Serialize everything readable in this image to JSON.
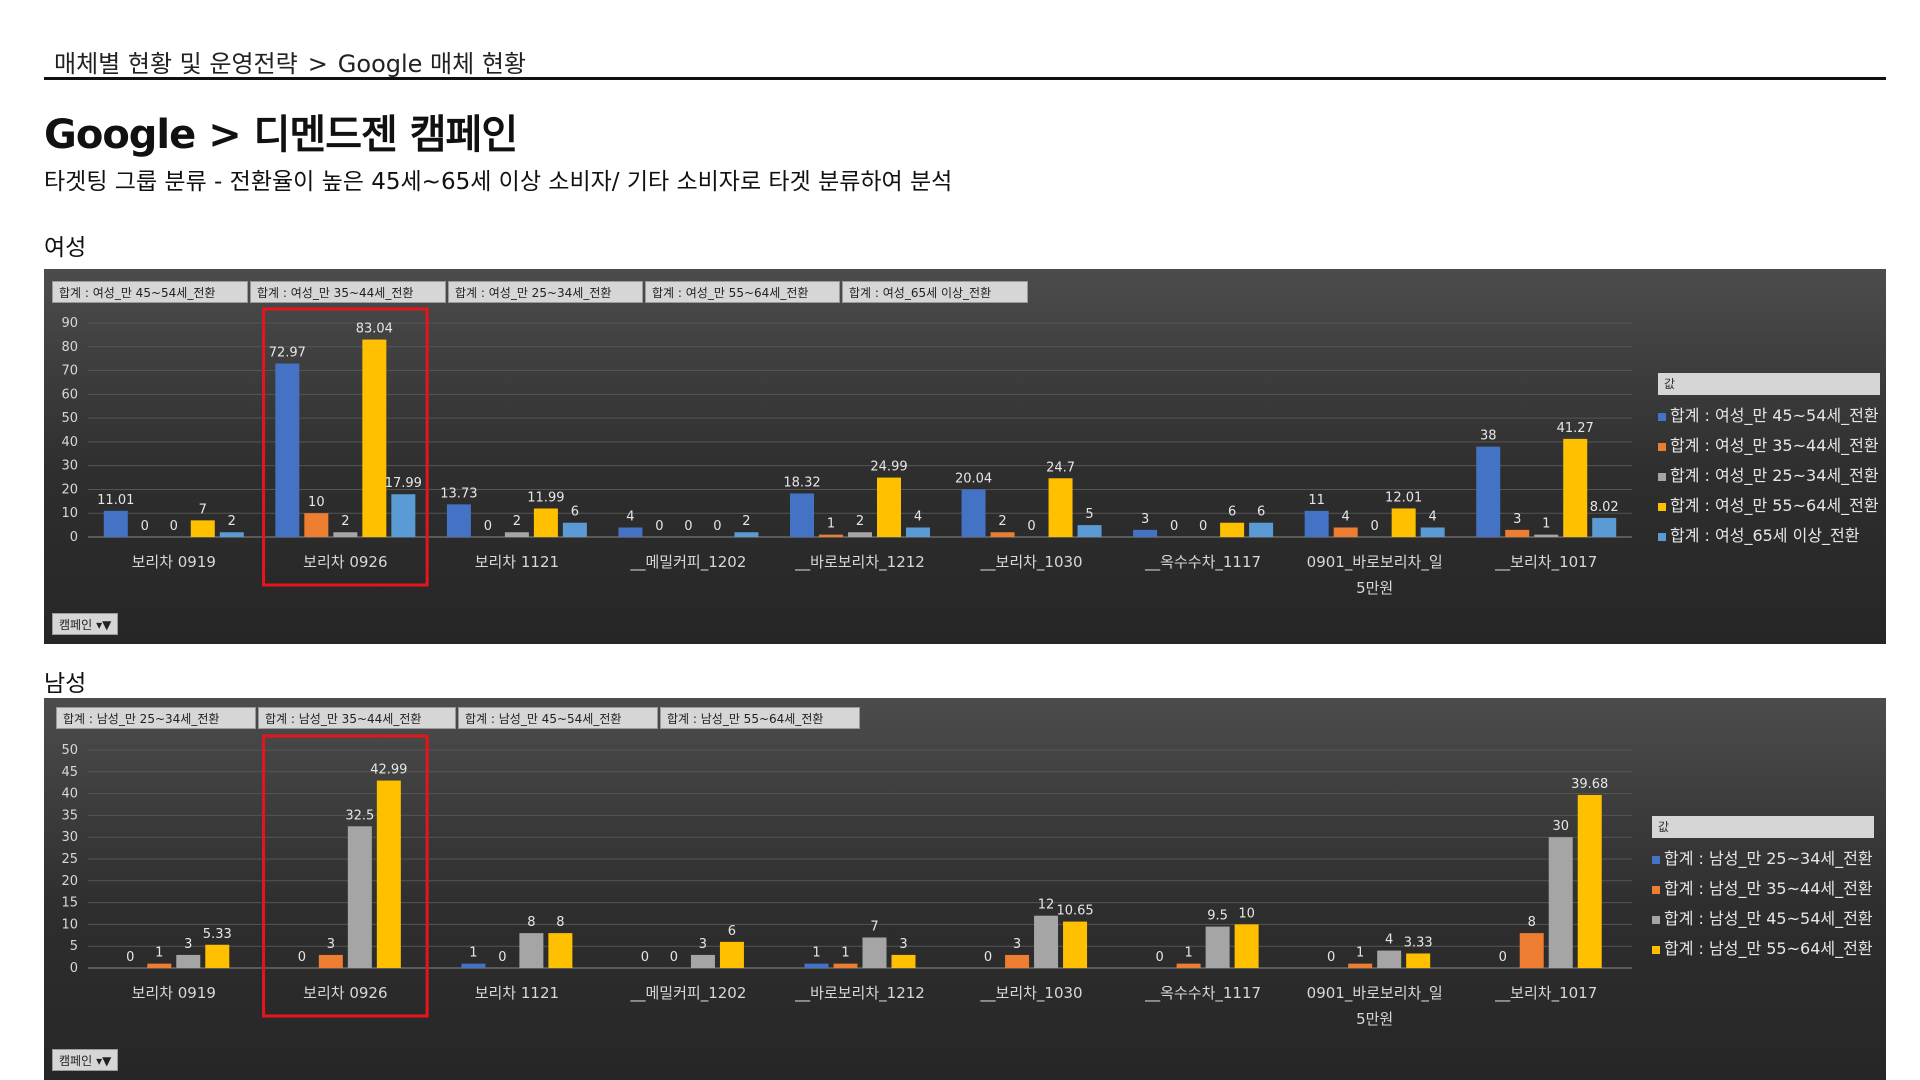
{
  "breadcrumb": {
    "section": "매체별 현황 및 운영전략",
    "separator": ">",
    "page": "Google 매체 현황"
  },
  "title": "Google > 디멘드젠 캠페인",
  "subtitle": "타겟팅 그룹 분류 - 전환율이 높은 45세~65세 이상 소비자/ 기타 소비자로 타겟 분류하여 분석",
  "sections": {
    "female": "여성",
    "male": "남성"
  },
  "legend_header": "값",
  "filter_label": "캠페인",
  "chart_data": [
    {
      "type": "bar",
      "section": "여성",
      "categories": [
        "보리차 0919",
        "보리차 0926",
        "보리차 1121",
        "__메밀커피_1202",
        "__바로보리차_1212",
        "__보리차_1030",
        "__옥수수차_1117",
        "0901_바로보리차_일\n5만원",
        "__보리차_1017"
      ],
      "category_lines": [
        [
          "보리차 0919"
        ],
        [
          "보리차 0926"
        ],
        [
          "보리차 1121"
        ],
        [
          "__메밀커피_1202"
        ],
        [
          "__바로보리차_1212"
        ],
        [
          "__보리차_1030"
        ],
        [
          "__옥수수차_1117"
        ],
        [
          "0901_바로보리차_일",
          "5만원"
        ],
        [
          "__보리차_1017"
        ]
      ],
      "ylim": [
        0,
        90
      ],
      "yticks": [
        0,
        10,
        20,
        30,
        40,
        50,
        60,
        70,
        80,
        90
      ],
      "grid": true,
      "legend_position": "right",
      "highlight_category": "보리차 0926",
      "series": [
        {
          "name": "합계 : 여성_만 45~54세_전환",
          "color": "#4472c4",
          "values": [
            11.01,
            72.97,
            13.73,
            4,
            18.32,
            20.04,
            3,
            11,
            38
          ]
        },
        {
          "name": "합계 : 여성_만 35~44세_전환",
          "color": "#ed7d31",
          "values": [
            0,
            10,
            0,
            0,
            1,
            2,
            0,
            4,
            3
          ]
        },
        {
          "name": "합계 : 여성_만 25~34세_전환",
          "color": "#a5a5a5",
          "values": [
            0,
            2,
            2,
            0,
            2,
            0,
            0,
            0,
            1
          ]
        },
        {
          "name": "합계 : 여성_만 55~64세_전환",
          "color": "#ffc000",
          "values": [
            7,
            83.04,
            11.99,
            0,
            24.99,
            24.7,
            6,
            12.01,
            41.27
          ]
        },
        {
          "name": "합계 : 여성_65세 이상_전환",
          "color": "#5b9bd5",
          "values": [
            2,
            17.99,
            6,
            2,
            4,
            5,
            6,
            4,
            8.02
          ]
        }
      ]
    },
    {
      "type": "bar",
      "section": "남성",
      "categories": [
        "보리차 0919",
        "보리차 0926",
        "보리차 1121",
        "__메밀커피_1202",
        "__바로보리차_1212",
        "__보리차_1030",
        "__옥수수차_1117",
        "0901_바로보리차_일\n5만원",
        "__보리차_1017"
      ],
      "category_lines": [
        [
          "보리차 0919"
        ],
        [
          "보리차 0926"
        ],
        [
          "보리차 1121"
        ],
        [
          "__메밀커피_1202"
        ],
        [
          "__바로보리차_1212"
        ],
        [
          "__보리차_1030"
        ],
        [
          "__옥수수차_1117"
        ],
        [
          "0901_바로보리차_일",
          "5만원"
        ],
        [
          "__보리차_1017"
        ]
      ],
      "ylim": [
        0,
        50
      ],
      "yticks": [
        0,
        5,
        10,
        15,
        20,
        25,
        30,
        35,
        40,
        45,
        50
      ],
      "grid": true,
      "legend_position": "right",
      "highlight_category": "보리차 0926",
      "series": [
        {
          "name": "합계 : 남성_만 25~34세_전환",
          "color": "#4472c4",
          "values": [
            0,
            0,
            1,
            0,
            1,
            0,
            0,
            0,
            0
          ]
        },
        {
          "name": "합계 : 남성_만 35~44세_전환",
          "color": "#ed7d31",
          "values": [
            1,
            3,
            0,
            0,
            1,
            3,
            1,
            1,
            8
          ]
        },
        {
          "name": "합계 : 남성_만 45~54세_전환",
          "color": "#a5a5a5",
          "values": [
            3,
            32.5,
            8,
            3,
            7,
            12,
            9.5,
            4,
            30
          ]
        },
        {
          "name": "합계 : 남성_만 55~64세_전환",
          "color": "#ffc000",
          "values": [
            5.33,
            42.99,
            8,
            6,
            3,
            10.65,
            10,
            3.33,
            39.68
          ]
        }
      ]
    }
  ]
}
